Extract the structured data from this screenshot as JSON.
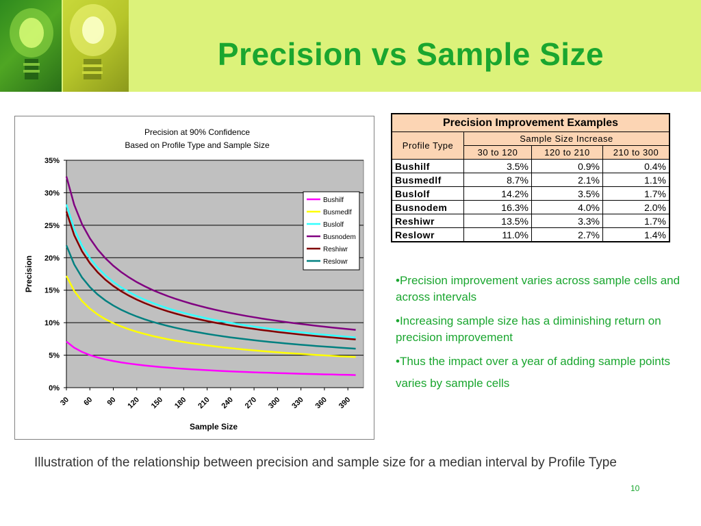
{
  "slide": {
    "title": "Precision vs Sample Size",
    "page_number": "10",
    "caption": "Illustration of the relationship between precision and sample size for a median interval by Profile Type",
    "bullets": [
      "•Precision improvement varies across sample cells and across intervals",
      "•Increasing sample size has a diminishing return on precision improvement",
      "•Thus the impact over a year of adding sample points varies by sample cells"
    ],
    "colors": {
      "title": "#1aa62f",
      "header_band": "#dcf27a",
      "table_header": "#fcd5b4"
    },
    "header_images": [
      "light-bulb-green",
      "light-bulb-yellow"
    ]
  },
  "table": {
    "caption": "Precision Improvement Examples",
    "row_header": "Profile Type",
    "group_header": "Sample Size Increase",
    "columns": [
      "30 to 120",
      "120 to 210",
      "210 to 300"
    ],
    "rows": [
      {
        "name": "Bushilf",
        "values": [
          "3.5%",
          "0.9%",
          "0.4%"
        ]
      },
      {
        "name": "Busmedlf",
        "values": [
          "8.7%",
          "2.1%",
          "1.1%"
        ]
      },
      {
        "name": "Buslolf",
        "values": [
          "14.2%",
          "3.5%",
          "1.7%"
        ]
      },
      {
        "name": "Busnodem",
        "values": [
          "16.3%",
          "4.0%",
          "2.0%"
        ]
      },
      {
        "name": "Reshiwr",
        "values": [
          "13.5%",
          "3.3%",
          "1.7%"
        ]
      },
      {
        "name": "Reslowr",
        "values": [
          "11.0%",
          "2.7%",
          "1.4%"
        ]
      }
    ]
  },
  "chart_data": {
    "type": "line",
    "title": "Precision at 90% Confidence",
    "subtitle": "Based on Profile Type and Sample Size",
    "xlabel": "Sample Size",
    "ylabel": "Precision",
    "x_ticks": [
      "30",
      "60",
      "90",
      "120",
      "150",
      "180",
      "210",
      "240",
      "270",
      "300",
      "330",
      "360",
      "390"
    ],
    "y_ticks": [
      "0%",
      "5%",
      "10%",
      "15%",
      "20%",
      "25%",
      "30%",
      "35%"
    ],
    "xlim": [
      30,
      410
    ],
    "ylim": [
      0,
      0.35
    ],
    "grid": "horizontal",
    "legend_position": "right",
    "plot_background": "#c0c0c0",
    "series": [
      {
        "name": "Bushilf",
        "color": "#ff00ff",
        "precision_at_30": 0.071
      },
      {
        "name": "Busmedlf",
        "color": "#ffff00",
        "precision_at_30": 0.172
      },
      {
        "name": "Buslolf",
        "color": "#33ffff",
        "precision_at_30": 0.282
      },
      {
        "name": "Busnodem",
        "color": "#800080",
        "precision_at_30": 0.325
      },
      {
        "name": "Reshiwr",
        "color": "#800000",
        "precision_at_30": 0.271
      },
      {
        "name": "Reslowr",
        "color": "#008080",
        "precision_at_30": 0.219
      }
    ],
    "x_step": 10,
    "x_start": 30,
    "x_end": 400
  }
}
